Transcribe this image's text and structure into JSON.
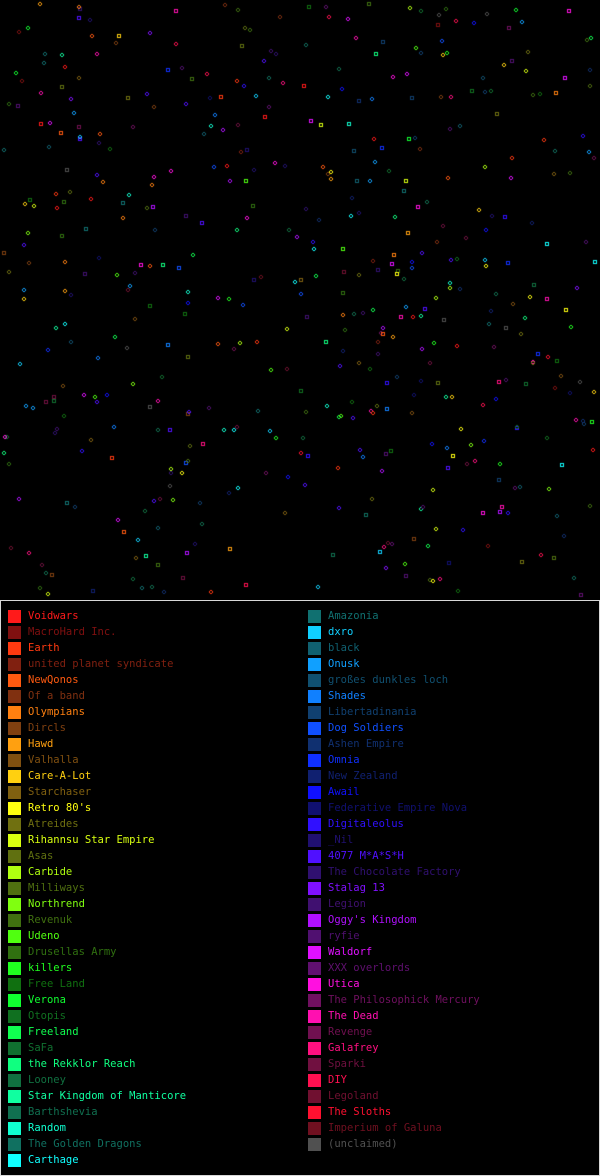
{
  "map": {
    "star_count": 520,
    "seed": 7
  },
  "legend": {
    "left": [
      {
        "name": "Voidwars",
        "color": "#ff1a1a",
        "active": true
      },
      {
        "name": "MacroHard Inc.",
        "color": "#801010",
        "active": false
      },
      {
        "name": "Earth",
        "color": "#ff3a10",
        "active": true
      },
      {
        "name": "united planet syndicate",
        "color": "#802010",
        "active": false
      },
      {
        "name": "NewQonos",
        "color": "#ff5a10",
        "active": true
      },
      {
        "name": "Of a band",
        "color": "#803010",
        "active": false
      },
      {
        "name": "Olympians",
        "color": "#ff8010",
        "active": true
      },
      {
        "name": "Dircls",
        "color": "#804010",
        "active": false
      },
      {
        "name": "Hawd",
        "color": "#ffa010",
        "active": true
      },
      {
        "name": "Valhalla",
        "color": "#805010",
        "active": false
      },
      {
        "name": "Care-A-Lot",
        "color": "#ffd010",
        "active": true
      },
      {
        "name": "Starchaser",
        "color": "#806010",
        "active": false
      },
      {
        "name": "Retro 80's",
        "color": "#ffff10",
        "active": true
      },
      {
        "name": "Atreides",
        "color": "#707010",
        "active": false
      },
      {
        "name": "Rihannsu Star Empire",
        "color": "#d8ff10",
        "active": true
      },
      {
        "name": "Asas",
        "color": "#607010",
        "active": false
      },
      {
        "name": "Carbide",
        "color": "#b0ff10",
        "active": true
      },
      {
        "name": "Milliways",
        "color": "#507010",
        "active": false
      },
      {
        "name": "Northrend",
        "color": "#80ff10",
        "active": true
      },
      {
        "name": "Revenuk",
        "color": "#407010",
        "active": false
      },
      {
        "name": "Udeno",
        "color": "#50ff10",
        "active": true
      },
      {
        "name": "Drusellas Army",
        "color": "#307010",
        "active": false
      },
      {
        "name": "killers",
        "color": "#20ff20",
        "active": true
      },
      {
        "name": "Free Land",
        "color": "#107010",
        "active": false
      },
      {
        "name": "Verona",
        "color": "#10ff30",
        "active": true
      },
      {
        "name": "Otopis",
        "color": "#107020",
        "active": false
      },
      {
        "name": "Freeland",
        "color": "#10ff50",
        "active": true
      },
      {
        "name": "SaFa",
        "color": "#107030",
        "active": false
      },
      {
        "name": "the Rekklor Reach",
        "color": "#10ff80",
        "active": true
      },
      {
        "name": "Looney",
        "color": "#107040",
        "active": false
      },
      {
        "name": "Star Kingdom of Manticore",
        "color": "#10ffa0",
        "active": true
      },
      {
        "name": "Barthshevia",
        "color": "#107050",
        "active": false
      },
      {
        "name": "Random",
        "color": "#10ffd0",
        "active": true
      },
      {
        "name": "The Golden Dragons",
        "color": "#107060",
        "active": false
      },
      {
        "name": "Carthage",
        "color": "#10ffff",
        "active": true
      }
    ],
    "right": [
      {
        "name": "Amazonia",
        "color": "#107070",
        "active": false
      },
      {
        "name": "dxro",
        "color": "#10d0ff",
        "active": true
      },
      {
        "name": "black",
        "color": "#106070",
        "active": false
      },
      {
        "name": "Onusk",
        "color": "#10a0ff",
        "active": true
      },
      {
        "name": "großes dunkles loch",
        "color": "#105070",
        "active": false
      },
      {
        "name": "Shades",
        "color": "#1080ff",
        "active": true
      },
      {
        "name": "Libertadinania",
        "color": "#104070",
        "active": false
      },
      {
        "name": "Dog Soldiers",
        "color": "#1050ff",
        "active": true
      },
      {
        "name": "Ashen Empire",
        "color": "#103070",
        "active": false
      },
      {
        "name": "Omnia",
        "color": "#1030ff",
        "active": true
      },
      {
        "name": "New Zealand",
        "color": "#102070",
        "active": false
      },
      {
        "name": "Awail",
        "color": "#1010ff",
        "active": true
      },
      {
        "name": "Federative Empire Nova",
        "color": "#101070",
        "active": false
      },
      {
        "name": "Digitaleolus",
        "color": "#3010ff",
        "active": true
      },
      {
        "name": "_Nil",
        "color": "#201070",
        "active": false
      },
      {
        "name": "4077 M*A*S*H",
        "color": "#5010ff",
        "active": true
      },
      {
        "name": "The Chocolate Factory",
        "color": "#301070",
        "active": false
      },
      {
        "name": "Stalag 13",
        "color": "#8010ff",
        "active": true
      },
      {
        "name": "Legion",
        "color": "#401070",
        "active": false
      },
      {
        "name": "Oggy's Kingdom",
        "color": "#b010ff",
        "active": true
      },
      {
        "name": "ryfie",
        "color": "#501070",
        "active": false
      },
      {
        "name": "Waldorf",
        "color": "#e010ff",
        "active": true
      },
      {
        "name": "XXX overlords",
        "color": "#601070",
        "active": false
      },
      {
        "name": "Utica",
        "color": "#ff10e0",
        "active": true
      },
      {
        "name": "The Philosophick Mercury",
        "color": "#701060",
        "active": false
      },
      {
        "name": "The Dead",
        "color": "#ff10b0",
        "active": true
      },
      {
        "name": "Revenge",
        "color": "#701050",
        "active": false
      },
      {
        "name": "Galafrey",
        "color": "#ff1080",
        "active": true
      },
      {
        "name": "Sparki",
        "color": "#701040",
        "active": false
      },
      {
        "name": "DIY",
        "color": "#ff1050",
        "active": true
      },
      {
        "name": "Legoland",
        "color": "#701030",
        "active": false
      },
      {
        "name": "The Sloths",
        "color": "#ff1030",
        "active": true
      },
      {
        "name": "Imperium of Galuna",
        "color": "#701020",
        "active": false
      },
      {
        "name": "(unclaimed)",
        "color": "#505050",
        "active": false
      }
    ]
  }
}
